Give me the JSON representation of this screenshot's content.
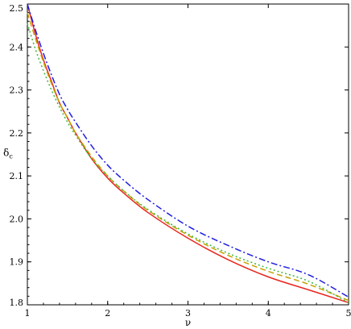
{
  "chart_data": {
    "type": "line",
    "title": "",
    "xlabel": "ν",
    "ylabel": "δ",
    "ylabel_subscript": "c",
    "xlim": [
      1,
      5
    ],
    "ylim": [
      1.8,
      2.5
    ],
    "x_ticks": [
      1,
      2,
      3,
      4,
      5
    ],
    "x_tick_labels": [
      "1",
      "2",
      "3",
      "4",
      "5"
    ],
    "y_ticks": [
      1.8,
      1.9,
      2.0,
      2.1,
      2.2,
      2.3,
      2.4,
      2.5
    ],
    "y_tick_labels": [
      "1.8",
      "1.9",
      "2.0",
      "2.1",
      "2.2",
      "2.3",
      "2.4",
      "2.5"
    ],
    "grid": false,
    "legend": "none",
    "series": [
      {
        "color": "#e8251e",
        "dash": "solid",
        "x": [
          1.0,
          1.1,
          1.2,
          1.3,
          1.4,
          1.5,
          1.6,
          1.8,
          2.0,
          2.2,
          2.5,
          3.0,
          3.5,
          4.0,
          4.5,
          5.0
        ],
        "y": [
          2.5,
          2.43,
          2.37,
          2.32,
          2.27,
          2.235,
          2.2,
          2.14,
          2.095,
          2.06,
          2.015,
          1.955,
          1.905,
          1.865,
          1.835,
          1.805
        ]
      },
      {
        "color": "#c8a000",
        "dash": "dash",
        "x": [
          1.0,
          1.1,
          1.2,
          1.3,
          1.4,
          1.5,
          1.6,
          1.8,
          2.0,
          2.2,
          2.5,
          3.0,
          3.5,
          4.0,
          4.5,
          5.0
        ],
        "y": [
          2.48,
          2.42,
          2.365,
          2.315,
          2.27,
          2.235,
          2.2,
          2.145,
          2.1,
          2.065,
          2.02,
          1.962,
          1.915,
          1.878,
          1.848,
          1.81
        ]
      },
      {
        "color": "#3cb83c",
        "dash": "dot",
        "x": [
          1.0,
          1.1,
          1.2,
          1.3,
          1.4,
          1.5,
          1.6,
          1.8,
          2.0,
          2.2,
          2.5,
          3.0,
          3.5,
          4.0,
          4.5,
          5.0
        ],
        "y": [
          2.455,
          2.395,
          2.345,
          2.3,
          2.26,
          2.225,
          2.195,
          2.14,
          2.1,
          2.065,
          2.022,
          1.965,
          1.92,
          1.885,
          1.855,
          1.805
        ]
      },
      {
        "color": "#1e1ee0",
        "dash": "dashdot",
        "x": [
          1.0,
          1.1,
          1.2,
          1.3,
          1.4,
          1.5,
          1.6,
          1.8,
          2.0,
          2.2,
          2.5,
          3.0,
          3.5,
          4.0,
          4.5,
          5.0
        ],
        "y": [
          2.5,
          2.44,
          2.385,
          2.335,
          2.29,
          2.255,
          2.225,
          2.17,
          2.125,
          2.09,
          2.045,
          1.983,
          1.938,
          1.9,
          1.87,
          1.818
        ]
      }
    ]
  }
}
